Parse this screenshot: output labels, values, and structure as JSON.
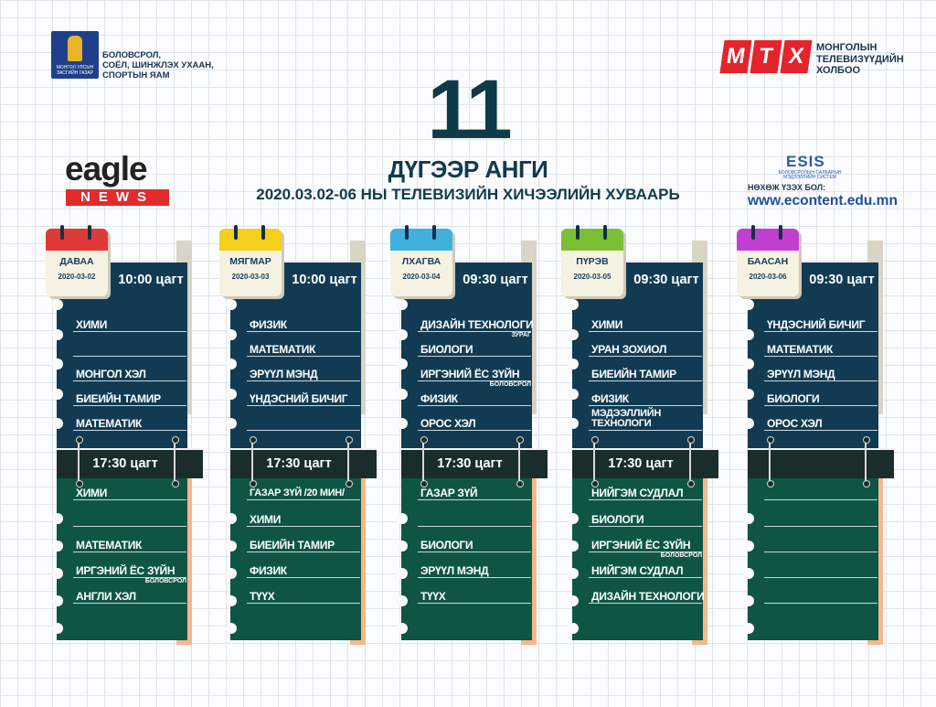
{
  "header": {
    "ministry_logo_caption": "МОНГОЛ УЛСЫН ЗАСГИЙН ГАЗАР",
    "ministry_lines": [
      "БОЛОВСРОЛ,",
      "СОЁЛ, ШИНЖЛЭХ УХААН,",
      "СПОРТЫН ЯАМ"
    ],
    "mtx_letters": [
      "М",
      "Т",
      "Х"
    ],
    "mtx_lines": [
      "МОНГОЛЫН",
      "ТЕЛЕВИЗҮҮДИЙН",
      "ХОЛБОО"
    ],
    "grade_number": "11",
    "grade_label": "ДҮГЭЭР АНГИ",
    "title": "2020.03.02-06 НЫ ТЕЛЕВИЗИЙН ХИЧЭЭЛИЙН ХУВААРЬ",
    "eagle": "eagle",
    "news": "NEWS",
    "esis": "ESIS",
    "esis_sub": "БОЛОВСРОЛЫН САЛБАРЫН МЭДЭЭЛЛИЙН СИСТЕМ",
    "follow_label": "НӨХӨЖ ҮЗЭХ БОЛ:",
    "url": "www.econtent.edu.mn"
  },
  "colors": {
    "dark_blue": "#123b53",
    "green": "#0f5546",
    "band": "#1b2d2a",
    "beige": "#d8d4c6",
    "peach": "#f5b88c"
  },
  "days": [
    {
      "name": "ДАВАА",
      "date": "2020-03-02",
      "color": "#e0393a",
      "morning_time": "10:00 цагт",
      "evening_time": "17:30 цагт",
      "morning": [
        {
          "subject": "ХИМИ"
        },
        {
          "subject": ""
        },
        {
          "subject": "МОНГОЛ ХЭЛ"
        },
        {
          "subject": "БИЕИЙН ТАМИР"
        },
        {
          "subject": "МАТЕМАТИК"
        }
      ],
      "evening": [
        {
          "subject": "ХИМИ"
        },
        {
          "subject": ""
        },
        {
          "subject": "МАТЕМАТИК"
        },
        {
          "subject": "ИРГЭНИЙ ЁС ЗҮЙН",
          "note": "БОЛОВСРОЛ"
        },
        {
          "subject": "АНГЛИ ХЭЛ"
        }
      ]
    },
    {
      "name": "МЯГМАР",
      "date": "2020-03-03",
      "color": "#f4cf1c",
      "morning_time": "10:00 цагт",
      "evening_time": "17:30 цагт",
      "morning": [
        {
          "subject": "ФИЗИК"
        },
        {
          "subject": "МАТЕМАТИК"
        },
        {
          "subject": "ЭРҮҮЛ МЭНД"
        },
        {
          "subject": "ҮНДЭСНИЙ БИЧИГ"
        },
        {
          "subject": ""
        }
      ],
      "evening": [
        {
          "subject": "ГАЗАР ЗҮЙ /20 МИН/"
        },
        {
          "subject": "ХИМИ"
        },
        {
          "subject": "БИЕИЙН ТАМИР"
        },
        {
          "subject": "ФИЗИК"
        },
        {
          "subject": "ТҮҮХ"
        }
      ]
    },
    {
      "name": "ЛХАГВА",
      "date": "2020-03-04",
      "color": "#3fb0dc",
      "morning_time": "09:30 цагт",
      "evening_time": "17:30 цагт",
      "morning": [
        {
          "subject": "ДИЗАЙН ТЕХНОЛОГИ",
          "note": "ЗУРАГ"
        },
        {
          "subject": "БИОЛОГИ"
        },
        {
          "subject": "ИРГЭНИЙ ЁС ЗҮЙН",
          "note": "БОЛОВСРОЛ"
        },
        {
          "subject": "ФИЗИК"
        },
        {
          "subject": "ОРОС ХЭЛ"
        }
      ],
      "evening": [
        {
          "subject": "ГАЗАР ЗҮЙ"
        },
        {
          "subject": ""
        },
        {
          "subject": "БИОЛОГИ"
        },
        {
          "subject": "ЭРҮҮЛ МЭНД"
        },
        {
          "subject": "ТҮҮХ"
        }
      ]
    },
    {
      "name": "ПҮРЭВ",
      "date": "2020-03-05",
      "color": "#7cbf34",
      "morning_time": "09:30 цагт",
      "evening_time": "17:30 цагт",
      "morning": [
        {
          "subject": "ХИМИ"
        },
        {
          "subject": "УРАН ЗОХИОЛ"
        },
        {
          "subject": "БИЕИЙН ТАМИР"
        },
        {
          "subject": "ФИЗИК"
        },
        {
          "subject": "МЭДЭЭЛЛИЙН ТЕХНОЛОГИ"
        }
      ],
      "evening": [
        {
          "subject": "НИЙГЭМ СУДЛАЛ"
        },
        {
          "subject": "БИОЛОГИ"
        },
        {
          "subject": "ИРГЭНИЙ ЁС ЗҮЙН",
          "note": "БОЛОВСРОЛ"
        },
        {
          "subject": "НИЙГЭМ СУДЛАЛ"
        },
        {
          "subject": "ДИЗАЙН ТЕХНОЛОГИ"
        }
      ]
    },
    {
      "name": "БААСАН",
      "date": "2020-03-06",
      "color": "#c23fcf",
      "morning_time": "09:30 цагт",
      "evening_time": "",
      "morning": [
        {
          "subject": "ҮНДЭСНИЙ БИЧИГ"
        },
        {
          "subject": "МАТЕМАТИК"
        },
        {
          "subject": "ЭРҮҮЛ МЭНД"
        },
        {
          "subject": "БИОЛОГИ"
        },
        {
          "subject": "ОРОС ХЭЛ"
        }
      ],
      "evening": [
        {
          "subject": ""
        },
        {
          "subject": ""
        },
        {
          "subject": ""
        },
        {
          "subject": ""
        },
        {
          "subject": ""
        }
      ]
    }
  ]
}
